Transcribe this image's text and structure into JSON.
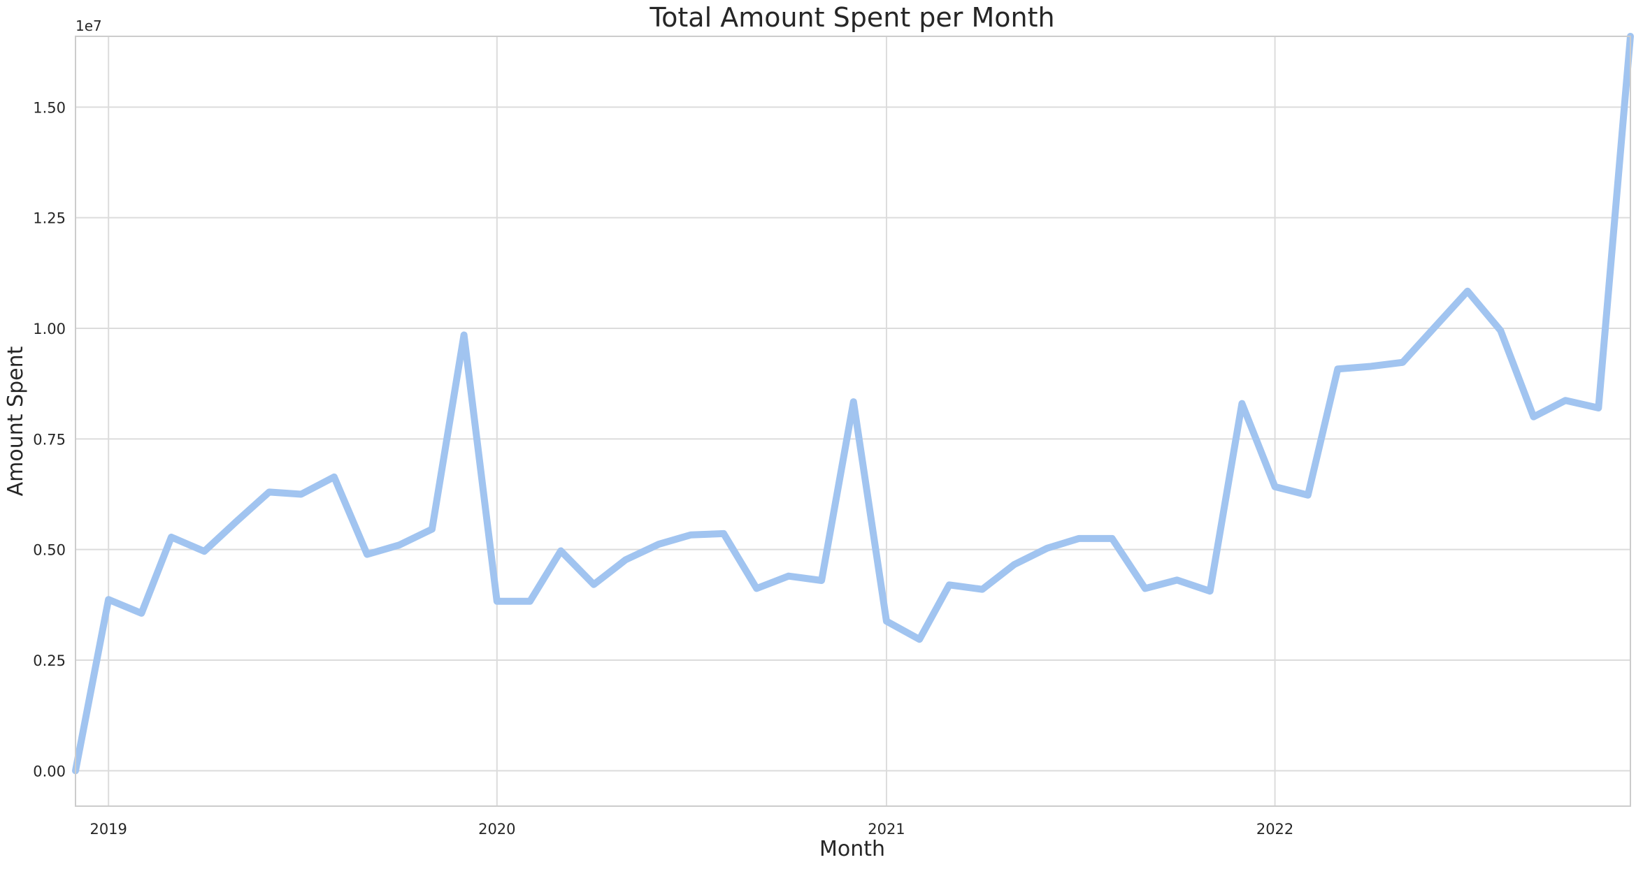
{
  "chart_data": {
    "type": "line",
    "title": "Total Amount Spent per Month",
    "xlabel": "Month",
    "ylabel": "Amount Spent",
    "y_offset_label": "1e7",
    "xlim": [
      "2018-12-01",
      "2022-12-01"
    ],
    "ylim": [
      -0.08,
      1.66
    ],
    "y_ticks": [
      0.0,
      0.25,
      0.5,
      0.75,
      1.0,
      1.25,
      1.5
    ],
    "y_tick_labels": [
      "0.00",
      "0.25",
      "0.50",
      "0.75",
      "1.00",
      "1.25",
      "1.50"
    ],
    "x_ticks": [
      "2019-01-01",
      "2020-01-01",
      "2021-01-01",
      "2022-01-01"
    ],
    "x_tick_labels": [
      "2019",
      "2020",
      "2021",
      "2022"
    ],
    "grid": true,
    "colors": {
      "line": "#a1c4f0",
      "grid": "#dcdcdc",
      "spine": "#cccccc"
    },
    "series": [
      {
        "x": [
          "2018-12-01",
          "2019-01-01",
          "2019-02-01",
          "2019-03-01",
          "2019-04-01",
          "2019-05-01",
          "2019-06-01",
          "2019-07-01",
          "2019-08-01",
          "2019-09-01",
          "2019-10-01",
          "2019-11-01",
          "2019-12-01",
          "2020-01-01",
          "2020-02-01",
          "2020-03-01",
          "2020-04-01",
          "2020-05-01",
          "2020-06-01",
          "2020-07-01",
          "2020-08-01",
          "2020-09-01",
          "2020-10-01",
          "2020-11-01",
          "2020-12-01",
          "2021-01-01",
          "2021-02-01",
          "2021-03-01",
          "2021-04-01",
          "2021-05-01",
          "2021-06-01",
          "2021-07-01",
          "2021-08-01",
          "2021-09-01",
          "2021-10-01",
          "2021-11-01",
          "2021-12-01",
          "2022-01-01",
          "2022-02-01",
          "2022-03-01",
          "2022-04-01",
          "2022-05-01",
          "2022-06-01",
          "2022-07-01",
          "2022-08-01",
          "2022-09-01",
          "2022-10-01",
          "2022-11-01",
          "2022-12-01"
        ],
        "values": [
          0.0,
          0.387,
          0.356,
          0.528,
          0.496,
          0.563,
          0.63,
          0.625,
          0.664,
          0.489,
          0.51,
          0.546,
          0.985,
          0.383,
          0.383,
          0.497,
          0.421,
          0.477,
          0.512,
          0.533,
          0.536,
          0.412,
          0.44,
          0.43,
          0.834,
          0.338,
          0.297,
          0.42,
          0.41,
          0.466,
          0.503,
          0.525,
          0.525,
          0.412,
          0.431,
          0.406,
          0.83,
          0.642,
          0.623,
          0.908,
          0.914,
          0.923,
          1.005,
          1.084,
          0.995,
          0.8,
          0.837,
          0.82,
          1.66
        ]
      }
    ]
  }
}
